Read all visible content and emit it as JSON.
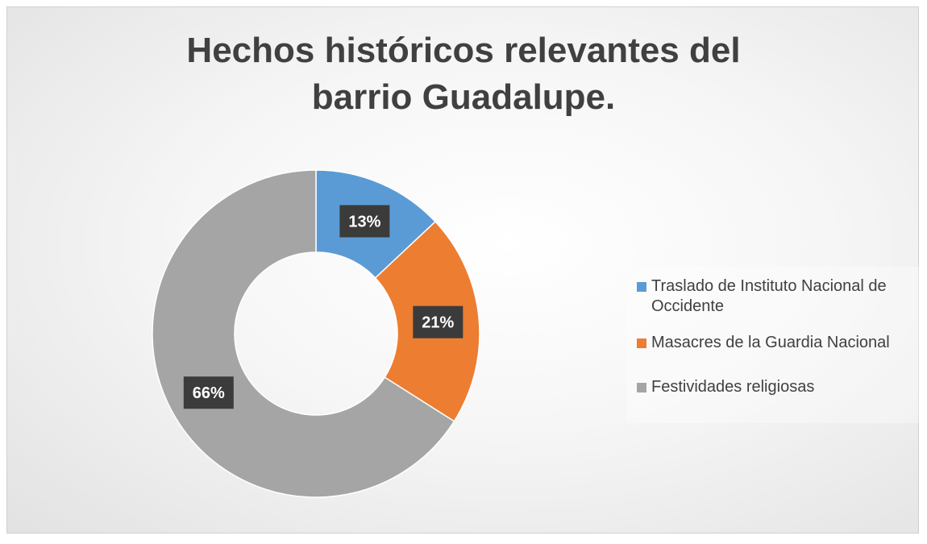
{
  "chart_data": {
    "type": "donut",
    "title": "Hechos históricos relevantes del barrio Guadalupe.",
    "categories": [
      "Traslado de Instituto Nacional de Occidente",
      "Masacres de la Guardia Nacional",
      "Festividades religiosas"
    ],
    "values": [
      13,
      21,
      66
    ],
    "value_labels": [
      "13%",
      "21%",
      "66%"
    ],
    "colors": [
      "#5b9bd5",
      "#ed7d31",
      "#a5a5a5"
    ],
    "legend": "right"
  }
}
